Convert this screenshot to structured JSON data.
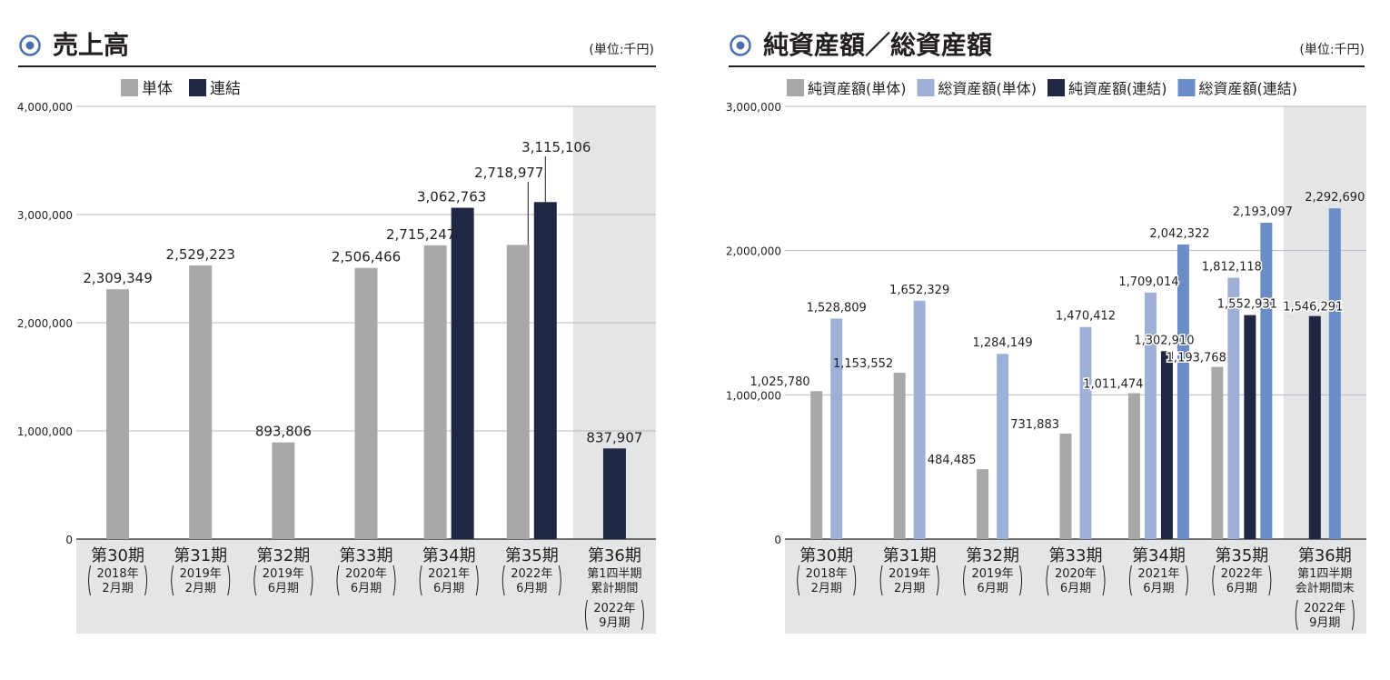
{
  "charts": [
    {
      "title": "売上高",
      "unit": "(単位:千円)",
      "legend": [
        {
          "label": "単体",
          "color": "#a7a8aa"
        },
        {
          "label": "連結",
          "color": "#1f2742"
        }
      ]
    },
    {
      "title": "純資産額／総資産額",
      "unit": "(単位:千円)",
      "legend": [
        {
          "label": "純資産額(単体)",
          "color": "#a7a8aa"
        },
        {
          "label": "総資産額(単体)",
          "color": "#9fb0d8"
        },
        {
          "label": "純資産額(連結)",
          "color": "#1f2742"
        },
        {
          "label": "総資産額(連結)",
          "color": "#6a8cc7"
        }
      ]
    }
  ],
  "chart_data": [
    {
      "type": "bar",
      "title": "売上高",
      "unit": "(単位:千円)",
      "ylim": [
        0,
        4000000
      ],
      "yticks": [
        "0",
        "1,000,000",
        "2,000,000",
        "3,000,000",
        "4,000,000"
      ],
      "categories": [
        {
          "period": "第30期",
          "date_lines": [
            "2018年",
            "2月期"
          ]
        },
        {
          "period": "第31期",
          "date_lines": [
            "2019年",
            "2月期"
          ]
        },
        {
          "period": "第32期",
          "date_lines": [
            "2019年",
            "6月期"
          ]
        },
        {
          "period": "第33期",
          "date_lines": [
            "2020年",
            "6月期"
          ]
        },
        {
          "period": "第34期",
          "date_lines": [
            "2021年",
            "6月期"
          ]
        },
        {
          "period": "第35期",
          "date_lines": [
            "2022年",
            "6月期"
          ]
        },
        {
          "period": "第36期",
          "sub_lines": [
            "第1四半期",
            "累計期間"
          ],
          "date_lines": [
            "2022年",
            "9月期"
          ]
        }
      ],
      "series": [
        {
          "name": "単体",
          "color": "#a7a8aa",
          "values": [
            2309349,
            2529223,
            893806,
            2506466,
            2715247,
            2718977,
            null
          ],
          "labels": [
            "2,309,349",
            "2,529,223",
            "893,806",
            "2,506,466",
            "2,715,247",
            "2,718,977",
            null
          ]
        },
        {
          "name": "連結",
          "color": "#1f2742",
          "values": [
            null,
            null,
            null,
            null,
            3062763,
            3115106,
            837907
          ],
          "labels": [
            null,
            null,
            null,
            null,
            "3,062,763",
            "3,115,106",
            "837,907"
          ]
        }
      ]
    },
    {
      "type": "bar",
      "title": "純資産額／総資産額",
      "unit": "(単位:千円)",
      "ylim": [
        0,
        3000000
      ],
      "yticks": [
        "0",
        "1,000,000",
        "2,000,000",
        "3,000,000"
      ],
      "categories": [
        {
          "period": "第30期",
          "date_lines": [
            "2018年",
            "2月期"
          ]
        },
        {
          "period": "第31期",
          "date_lines": [
            "2019年",
            "2月期"
          ]
        },
        {
          "period": "第32期",
          "date_lines": [
            "2019年",
            "6月期"
          ]
        },
        {
          "period": "第33期",
          "date_lines": [
            "2020年",
            "6月期"
          ]
        },
        {
          "period": "第34期",
          "date_lines": [
            "2021年",
            "6月期"
          ]
        },
        {
          "period": "第35期",
          "date_lines": [
            "2022年",
            "6月期"
          ]
        },
        {
          "period": "第36期",
          "sub_lines": [
            "第1四半期",
            "会計期間末"
          ],
          "date_lines": [
            "2022年",
            "9月期"
          ]
        }
      ],
      "series": [
        {
          "name": "純資産額(単体)",
          "color": "#a7a8aa",
          "values": [
            1025780,
            1153552,
            484485,
            731883,
            1011474,
            1193768,
            null
          ],
          "labels": [
            "1,025,780",
            "1,153,552",
            "484,485",
            "731,883",
            "1,011,474",
            "1,193,768",
            null
          ]
        },
        {
          "name": "総資産額(単体)",
          "color": "#9fb0d8",
          "values": [
            1528809,
            1652329,
            1284149,
            1470412,
            1709014,
            1812118,
            null
          ],
          "labels": [
            "1,528,809",
            "1,652,329",
            "1,284,149",
            "1,470,412",
            "1,709,014",
            "1,812,118",
            null
          ]
        },
        {
          "name": "純資産額(連結)",
          "color": "#1f2742",
          "values": [
            null,
            null,
            null,
            null,
            1302910,
            1552931,
            1546291
          ],
          "labels": [
            null,
            null,
            null,
            null,
            "1,302,910",
            "1,552,931",
            "1,546,291"
          ]
        },
        {
          "name": "総資産額(連結)",
          "color": "#6a8cc7",
          "values": [
            null,
            null,
            null,
            null,
            2042322,
            2193097,
            2292690
          ],
          "labels": [
            null,
            null,
            null,
            null,
            "2,042,322",
            "2,193,097",
            "2,292,690"
          ]
        }
      ]
    }
  ]
}
